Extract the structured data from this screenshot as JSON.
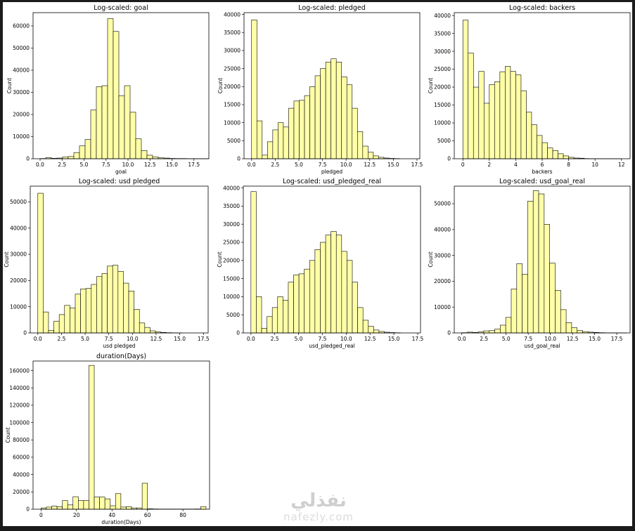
{
  "figure": {
    "bar_fill": "#ffffa8",
    "bar_edge": "#000000",
    "background": "#ffffff",
    "frame": "#1b1b1b"
  },
  "watermark": {
    "arabic": "نفذلي",
    "latin": "nafezly.com"
  },
  "chart_data": [
    {
      "type": "bar",
      "title": "Log-scaled: goal",
      "xlabel": "goal",
      "ylabel": "Count",
      "xlim": [
        -0.8,
        19.2
      ],
      "ylim": [
        0,
        66000
      ],
      "xticks": [
        0.0,
        2.5,
        5.0,
        7.5,
        10.0,
        12.5,
        15.0,
        17.5
      ],
      "xtick_labels": [
        "0.0",
        "2.5",
        "5.0",
        "7.5",
        "10.0",
        "12.5",
        "15.0",
        "17.5"
      ],
      "yticks": [
        0,
        10000,
        20000,
        30000,
        40000,
        50000,
        60000
      ],
      "ytick_labels": [
        "0",
        "10000",
        "20000",
        "30000",
        "40000",
        "50000",
        "60000"
      ],
      "bins": {
        "start": 0.0,
        "width": 0.64
      },
      "values": [
        100,
        500,
        200,
        300,
        800,
        1000,
        2800,
        5800,
        8700,
        22000,
        32500,
        33000,
        63300,
        57500,
        28500,
        33000,
        21000,
        9000,
        3700,
        1600,
        800,
        400,
        300,
        150,
        100,
        100,
        50,
        50,
        30,
        20
      ]
    },
    {
      "type": "bar",
      "title": "Log-scaled: pledged",
      "xlabel": "pledged",
      "ylabel": "Count",
      "xlim": [
        -0.8,
        17.8
      ],
      "ylim": [
        0,
        40500
      ],
      "xticks": [
        0.0,
        2.5,
        5.0,
        7.5,
        10.0,
        12.5,
        15.0,
        17.5
      ],
      "xtick_labels": [
        "0.0",
        "2.5",
        "5.0",
        "7.5",
        "10.0",
        "12.5",
        "15.0",
        "17.5"
      ],
      "yticks": [
        0,
        5000,
        10000,
        15000,
        20000,
        25000,
        30000,
        35000,
        40000
      ],
      "ytick_labels": [
        "0",
        "5000",
        "10000",
        "15000",
        "20000",
        "25000",
        "30000",
        "35000",
        "40000"
      ],
      "bins": {
        "start": 0.0,
        "width": 0.56
      },
      "values": [
        38500,
        10500,
        1000,
        4700,
        8000,
        10000,
        8800,
        14000,
        16000,
        16200,
        17500,
        20000,
        23000,
        25000,
        26800,
        27700,
        26800,
        22700,
        20500,
        14000,
        7500,
        3500,
        1800,
        800,
        400,
        200,
        100,
        50
      ]
    },
    {
      "type": "bar",
      "title": "Log-scaled: backers",
      "xlabel": "backers",
      "ylabel": "Count",
      "xlim": [
        -0.65,
        12.65
      ],
      "ylim": [
        0,
        40800
      ],
      "xticks": [
        0,
        2,
        4,
        6,
        8,
        10,
        12
      ],
      "xtick_labels": [
        "0",
        "2",
        "4",
        "6",
        "8",
        "10",
        "12"
      ],
      "yticks": [
        0,
        5000,
        10000,
        15000,
        20000,
        25000,
        30000,
        35000,
        40000
      ],
      "ytick_labels": [
        "0",
        "5000",
        "10000",
        "15000",
        "20000",
        "25000",
        "30000",
        "35000",
        "40000"
      ],
      "bins": {
        "start": 0.0,
        "width": 0.4
      },
      "values": [
        38700,
        29500,
        20000,
        24400,
        15500,
        20700,
        21500,
        24300,
        25800,
        24400,
        23400,
        19000,
        13000,
        9500,
        6500,
        4500,
        3000,
        2300,
        1400,
        800,
        400,
        200,
        150,
        50,
        20,
        10,
        5,
        3,
        2,
        1
      ]
    },
    {
      "type": "bar",
      "title": "Log-scaled: usd pledged",
      "xlabel": "usd pledged",
      "ylabel": "Count",
      "xlim": [
        -0.8,
        18.0
      ],
      "ylim": [
        0,
        56000
      ],
      "xticks": [
        0.0,
        2.5,
        5.0,
        7.5,
        10.0,
        12.5,
        15.0,
        17.5
      ],
      "xtick_labels": [
        "0.0",
        "2.5",
        "5.0",
        "7.5",
        "10.0",
        "12.5",
        "15.0",
        "17.5"
      ],
      "yticks": [
        0,
        10000,
        20000,
        30000,
        40000,
        50000
      ],
      "ytick_labels": [
        "0",
        "10000",
        "20000",
        "30000",
        "40000",
        "50000"
      ],
      "bins": {
        "start": 0.0,
        "width": 0.565
      },
      "values": [
        53300,
        8000,
        1000,
        4500,
        7000,
        10500,
        9500,
        14800,
        16800,
        17000,
        18500,
        21500,
        22700,
        25500,
        25800,
        23500,
        19000,
        16000,
        9000,
        3800,
        2100,
        800,
        400,
        200,
        100,
        50,
        20
      ]
    },
    {
      "type": "bar",
      "title": "Log-scaled: usd_pledged_real",
      "xlabel": "usd_pledged_real",
      "ylabel": "Count",
      "xlim": [
        -0.8,
        17.8
      ],
      "ylim": [
        0,
        40500
      ],
      "xticks": [
        0.0,
        2.5,
        5.0,
        7.5,
        10.0,
        12.5,
        15.0,
        17.5
      ],
      "xtick_labels": [
        "0.0",
        "2.5",
        "5.0",
        "7.5",
        "10.0",
        "12.5",
        "15.0",
        "17.5"
      ],
      "yticks": [
        0,
        5000,
        10000,
        15000,
        20000,
        25000,
        30000,
        35000,
        40000
      ],
      "ytick_labels": [
        "0",
        "5000",
        "10000",
        "15000",
        "20000",
        "25000",
        "30000",
        "35000",
        "40000"
      ],
      "bins": {
        "start": 0.0,
        "width": 0.56
      },
      "values": [
        39000,
        10000,
        1300,
        4500,
        7000,
        10000,
        9000,
        14000,
        16000,
        16300,
        17600,
        20000,
        23000,
        25000,
        27000,
        28000,
        27000,
        22500,
        20000,
        14000,
        7000,
        3500,
        1800,
        800,
        400,
        200,
        100,
        50
      ]
    },
    {
      "type": "bar",
      "title": "Log-scaled: usd_goal_real",
      "xlabel": "usd_goal_real",
      "ylabel": "Count",
      "xlim": [
        -0.85,
        19.0
      ],
      "ylim": [
        0,
        56800
      ],
      "xticks": [
        0.0,
        2.5,
        5.0,
        7.5,
        10.0,
        12.5,
        15.0,
        17.5
      ],
      "xtick_labels": [
        "0.0",
        "2.5",
        "5.0",
        "7.5",
        "10.0",
        "12.5",
        "15.0",
        "17.5"
      ],
      "yticks": [
        0,
        10000,
        20000,
        30000,
        40000,
        50000
      ],
      "ytick_labels": [
        "0",
        "10000",
        "20000",
        "30000",
        "40000",
        "50000"
      ],
      "bins": {
        "start": 0.0,
        "width": 0.62
      },
      "values": [
        100,
        300,
        200,
        400,
        800,
        900,
        1500,
        3000,
        6000,
        17000,
        26800,
        22700,
        51000,
        55000,
        53800,
        42000,
        27000,
        16500,
        9000,
        4000,
        2000,
        900,
        500,
        300,
        200,
        100,
        50,
        50,
        30,
        20
      ]
    },
    {
      "type": "bar",
      "title": "duration(Days)",
      "xlabel": "duration(Days)",
      "ylabel": "Count",
      "xlim": [
        -4.5,
        95.0
      ],
      "ylim": [
        0,
        171000
      ],
      "xticks": [
        0,
        20,
        40,
        60,
        80
      ],
      "xtick_labels": [
        "0",
        "20",
        "40",
        "60",
        "80"
      ],
      "yticks": [
        0,
        20000,
        40000,
        60000,
        80000,
        100000,
        120000,
        140000,
        160000
      ],
      "ytick_labels": [
        "0",
        "20000",
        "40000",
        "60000",
        "80000",
        "100000",
        "120000",
        "140000",
        "160000"
      ],
      "bins": {
        "start": 0.0,
        "width": 3.0
      },
      "values": [
        1500,
        2500,
        3500,
        3000,
        10000,
        5000,
        14500,
        10000,
        10000,
        166000,
        14000,
        14000,
        12000,
        4000,
        18000,
        2500,
        3000,
        1500,
        1500,
        30000,
        500,
        300,
        200,
        200,
        200,
        200,
        200,
        200,
        200,
        300,
        3000
      ]
    }
  ]
}
